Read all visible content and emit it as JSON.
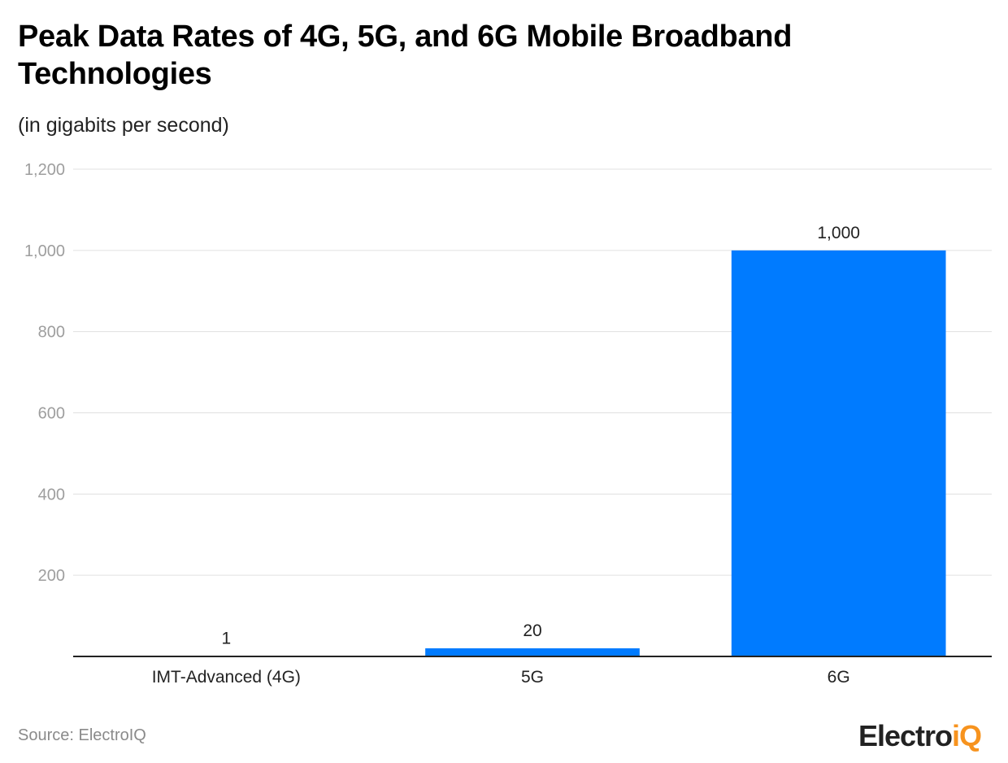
{
  "chart_data": {
    "type": "bar",
    "title": "Peak Data Rates of 4G, 5G, and 6G Mobile Broadband Technologies",
    "subtitle": "(in gigabits per second)",
    "categories": [
      "IMT-Advanced (4G)",
      "5G",
      "6G"
    ],
    "values": [
      1,
      20,
      1000
    ],
    "data_labels": [
      "1",
      "20",
      "1,000"
    ],
    "ylim": [
      0,
      1200
    ],
    "yticks": [
      200,
      400,
      600,
      800,
      1000,
      1200
    ],
    "ytick_labels": [
      "200",
      "400",
      "600",
      "800",
      "1,000",
      "1,200"
    ],
    "grid": true,
    "bar_color": "#007bff",
    "xlabel": "",
    "ylabel": ""
  },
  "source": "Source: ElectroIQ",
  "logo": {
    "main": "Electro",
    "accent": "iQ",
    "accent_color": "#f7931e"
  }
}
